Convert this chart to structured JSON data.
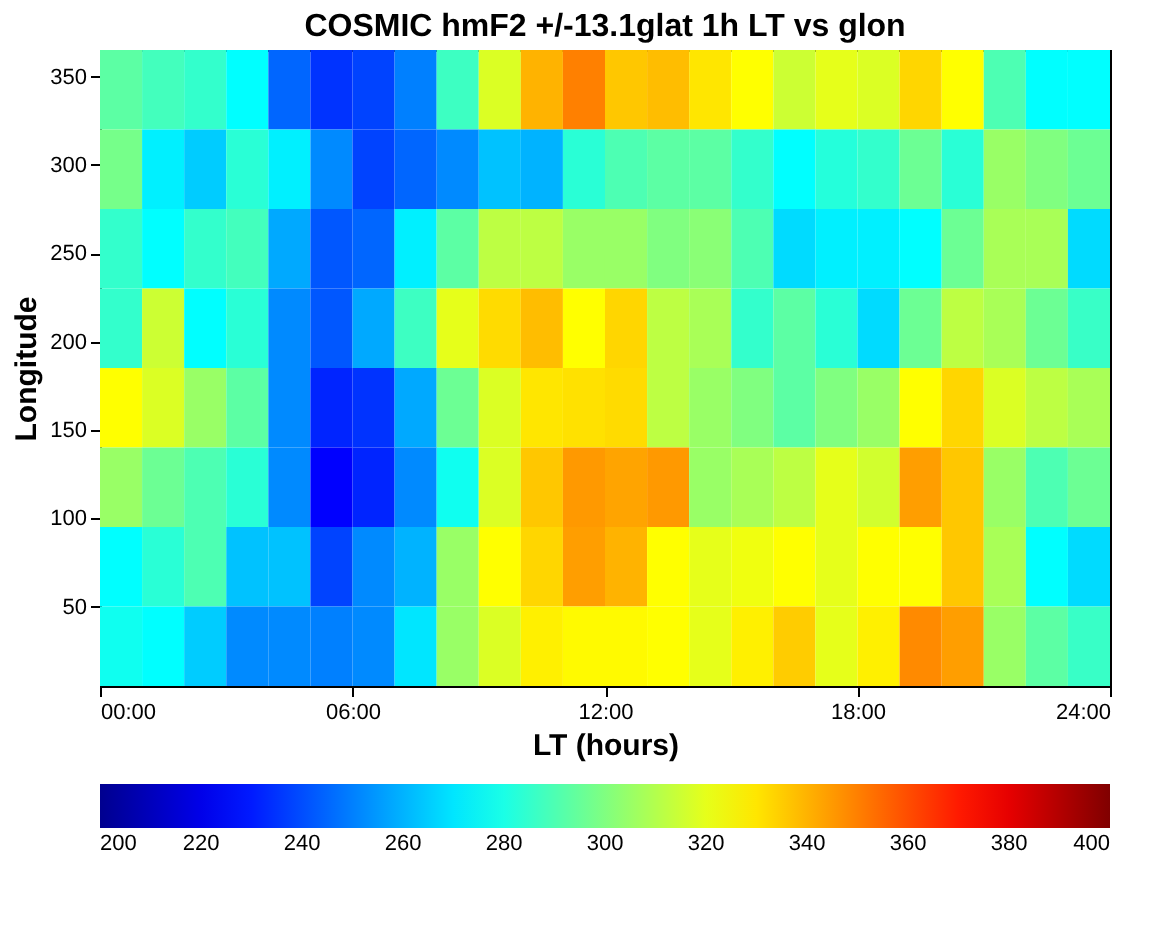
{
  "chart_data": {
    "type": "heatmap",
    "title": "COSMIC hmF2 +/-13.1glat 1h LT vs glon",
    "xlabel": "LT (hours)",
    "ylabel": "Longitude",
    "x": [
      0.5,
      1.5,
      2.5,
      3.5,
      4.5,
      5.5,
      6.5,
      7.5,
      8.5,
      9.5,
      10.5,
      11.5,
      12.5,
      13.5,
      14.5,
      15.5,
      16.5,
      17.5,
      18.5,
      19.5,
      20.5,
      21.5,
      22.5,
      23.5
    ],
    "y": [
      342.5,
      297.5,
      252.5,
      207.5,
      162.5,
      117.5,
      72.5,
      27.5
    ],
    "xlim": [
      0,
      24
    ],
    "xticks": [
      {
        "value": 0,
        "label": "00:00"
      },
      {
        "value": 6,
        "label": "06:00"
      },
      {
        "value": 12,
        "label": "12:00"
      },
      {
        "value": 18,
        "label": "18:00"
      },
      {
        "value": 24,
        "label": "24:00"
      }
    ],
    "ylim": [
      5,
      365
    ],
    "yticks": [
      50,
      100,
      150,
      200,
      250,
      300,
      350
    ],
    "clim": [
      200,
      400
    ],
    "cticks": [
      200,
      220,
      240,
      260,
      280,
      300,
      320,
      340,
      360,
      380,
      400
    ],
    "cells": [
      [
        293,
        288,
        285,
        275,
        245,
        235,
        238,
        250,
        287,
        318,
        340,
        350,
        336,
        338,
        330,
        325,
        315,
        320,
        318,
        333,
        325,
        290,
        275,
        275
      ],
      [
        298,
        272,
        265,
        283,
        272,
        252,
        238,
        245,
        252,
        263,
        260,
        283,
        290,
        293,
        293,
        285,
        275,
        282,
        285,
        296,
        283,
        305,
        300,
        296
      ],
      [
        285,
        275,
        285,
        288,
        258,
        242,
        245,
        272,
        293,
        312,
        312,
        305,
        305,
        300,
        302,
        290,
        268,
        272,
        272,
        275,
        296,
        308,
        308,
        268
      ],
      [
        285,
        315,
        275,
        283,
        252,
        242,
        258,
        287,
        320,
        332,
        338,
        325,
        333,
        312,
        308,
        285,
        293,
        283,
        268,
        296,
        312,
        308,
        296,
        286
      ],
      [
        325,
        318,
        305,
        293,
        252,
        232,
        235,
        258,
        296,
        318,
        330,
        331,
        332,
        312,
        305,
        300,
        293,
        300,
        305,
        325,
        333,
        318,
        312,
        308
      ],
      [
        305,
        296,
        290,
        283,
        252,
        225,
        232,
        252,
        278,
        318,
        336,
        345,
        343,
        345,
        305,
        308,
        312,
        320,
        316,
        344,
        336,
        305,
        290,
        296
      ],
      [
        275,
        283,
        290,
        263,
        263,
        238,
        252,
        260,
        305,
        325,
        333,
        344,
        340,
        325,
        320,
        322,
        325,
        320,
        325,
        325,
        336,
        308,
        275,
        268
      ],
      [
        278,
        275,
        265,
        252,
        252,
        250,
        252,
        270,
        305,
        318,
        328,
        326,
        326,
        325,
        320,
        328,
        335,
        320,
        328,
        348,
        344,
        305,
        293,
        286
      ]
    ],
    "grid": false
  }
}
